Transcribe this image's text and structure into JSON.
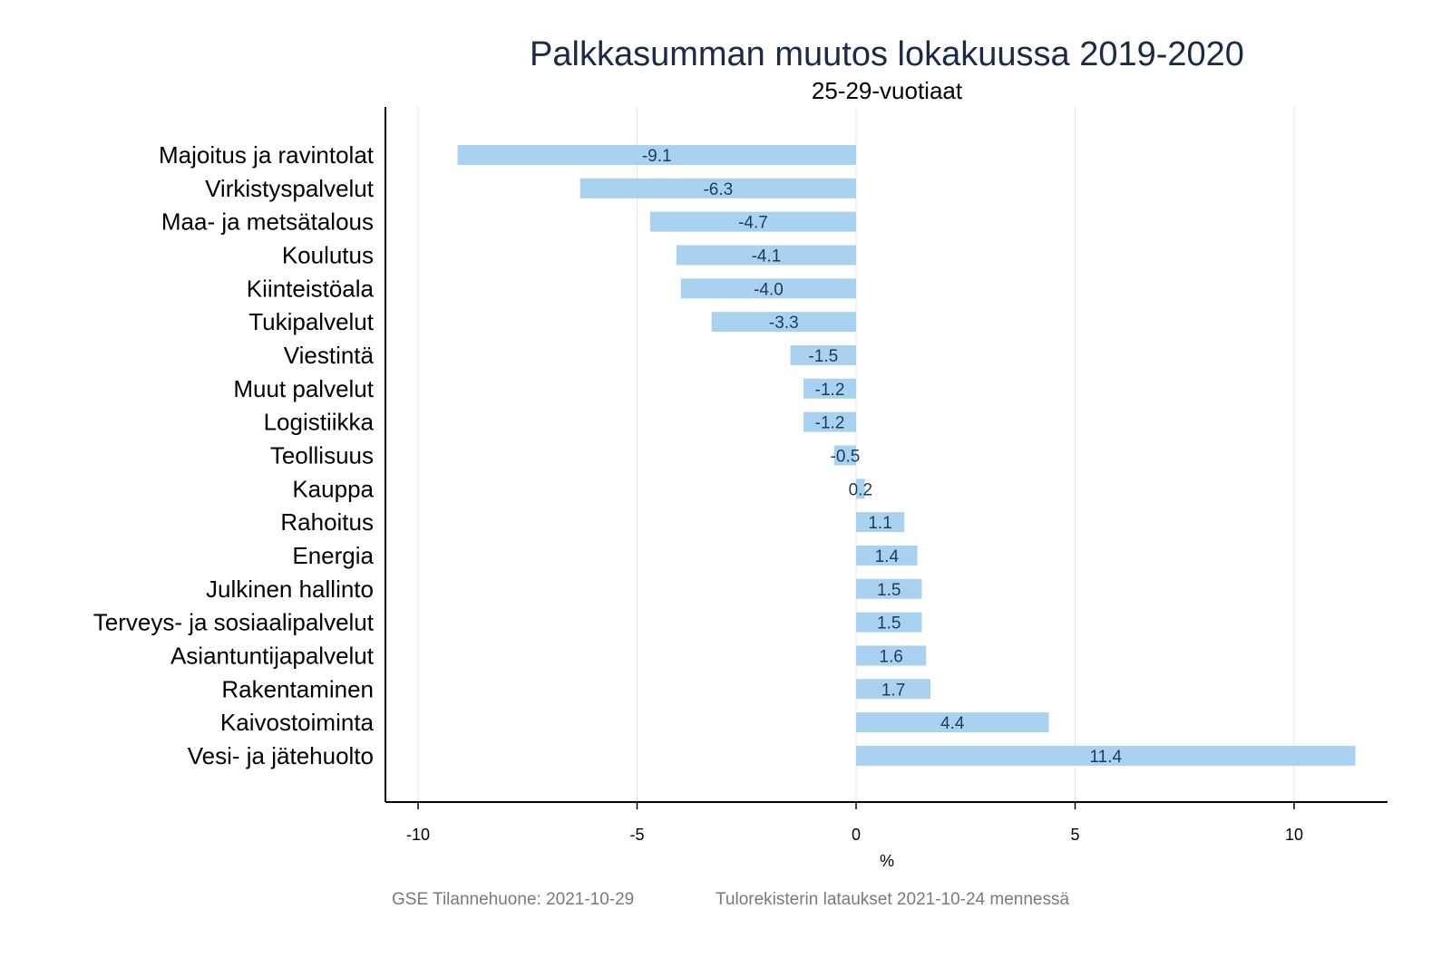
{
  "chart_data": {
    "type": "bar",
    "orientation": "horizontal",
    "title": "Palkkasumman muutos lokakuussa 2019-2020",
    "subtitle": "25-29-vuotiaat",
    "xlabel": "%",
    "ylabel": "",
    "xlim": [
      -10.75,
      12.1
    ],
    "xticks": [
      -10,
      -5,
      0,
      5,
      10
    ],
    "xtick_labels": [
      "-10",
      "-5",
      "0",
      "5",
      "10"
    ],
    "grid": true,
    "bar_color": "#a9d2f1",
    "categories": [
      "Majoitus ja ravintolat",
      "Virkistyspalvelut",
      "Maa- ja metsätalous",
      "Koulutus",
      "Kiinteistöala",
      "Tukipalvelut",
      "Viestintä",
      "Muut palvelut",
      "Logistiikka",
      "Teollisuus",
      "Kauppa",
      "Rahoitus",
      "Energia",
      "Julkinen hallinto",
      "Terveys- ja sosiaalipalvelut",
      "Asiantuntijapalvelut",
      "Rakentaminen",
      "Kaivostoiminta",
      "Vesi- ja jätehuolto"
    ],
    "values": [
      -9.1,
      -6.3,
      -4.7,
      -4.1,
      -4.0,
      -3.3,
      -1.5,
      -1.2,
      -1.2,
      -0.5,
      0.2,
      1.1,
      1.4,
      1.5,
      1.5,
      1.6,
      1.7,
      4.4,
      11.4
    ],
    "value_labels": [
      "-9.1",
      "-6.3",
      "-4.7",
      "-4.1",
      "-4.0",
      "-3.3",
      "-1.5",
      "-1.2",
      "-1.2",
      "-0.5",
      "0.2",
      "1.1",
      "1.4",
      "1.5",
      "1.5",
      "1.6",
      "1.7",
      "4.4",
      "11.4"
    ]
  },
  "footer": {
    "source": "GSE Tilannehuone: 2021-10-29",
    "note": "Tulorekisterin lataukset 2021-10-24 mennessä"
  }
}
